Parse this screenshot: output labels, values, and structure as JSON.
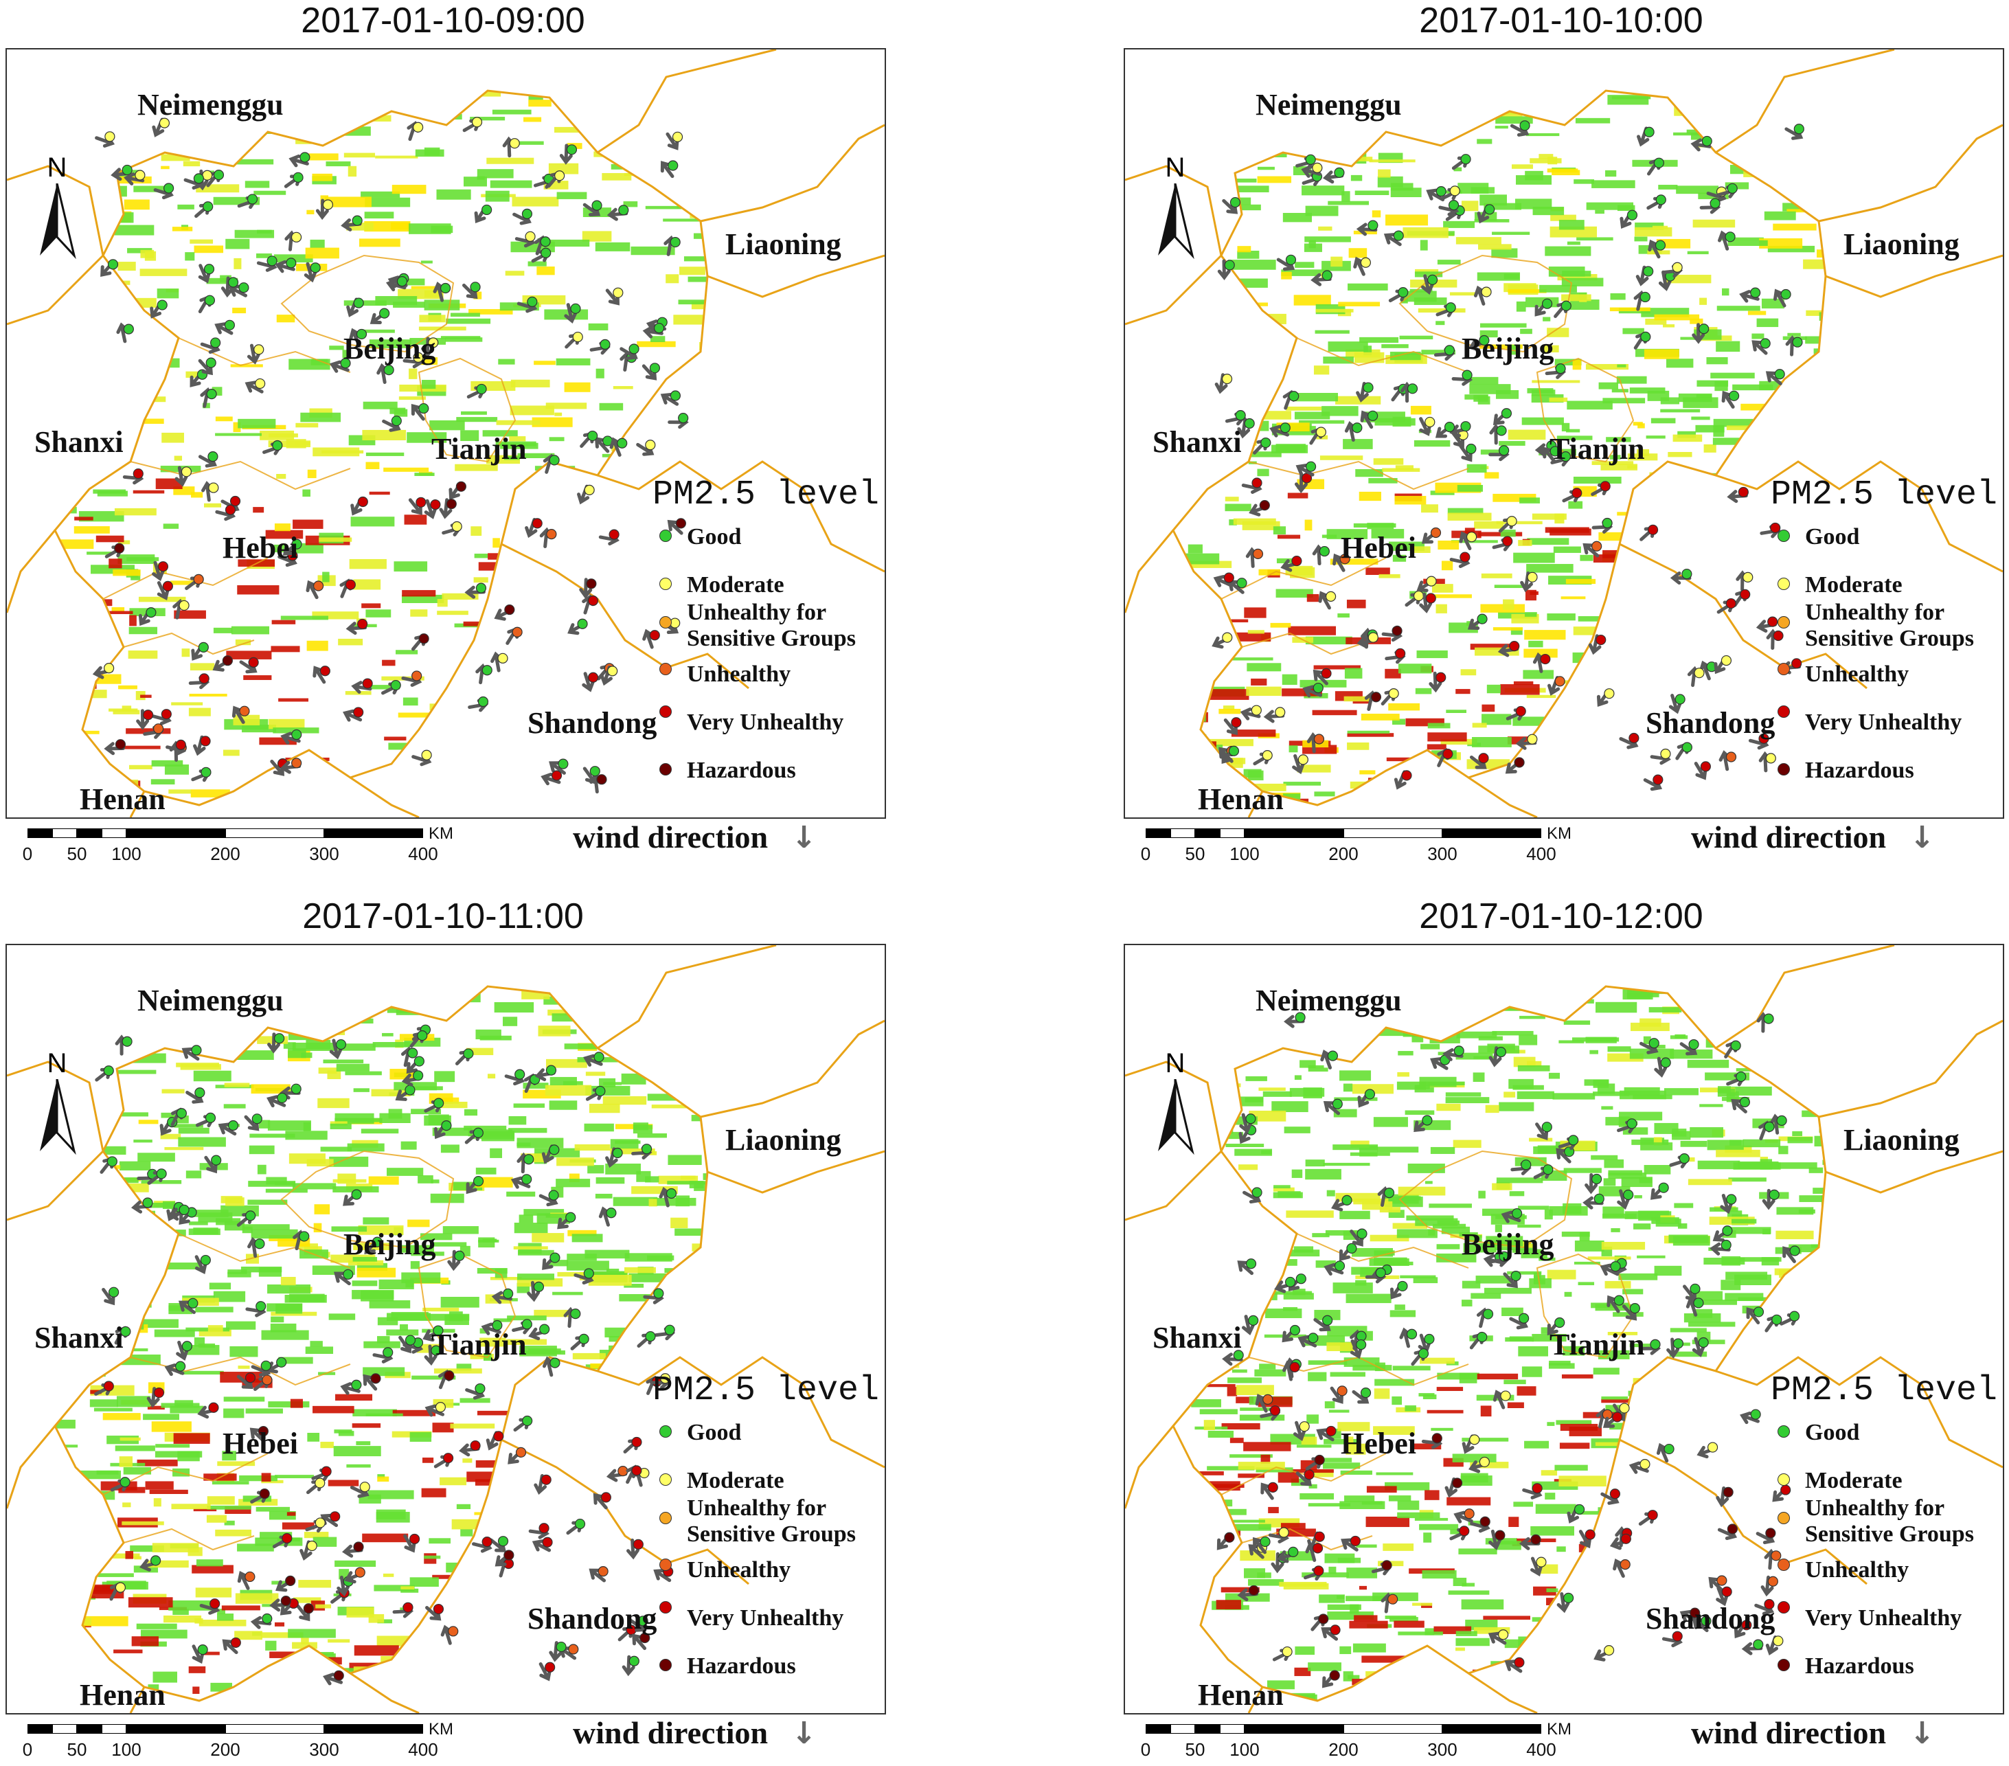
{
  "panels": [
    {
      "title": "2017-01-10-09:00"
    },
    {
      "title": "2017-01-10-10:00"
    },
    {
      "title": "2017-01-10-11:00"
    },
    {
      "title": "2017-01-10-12:00"
    }
  ],
  "regions": {
    "neimenggu": "Neimenggu",
    "liaoning": "Liaoning",
    "beijing": "Beijing",
    "shanxi": "Shanxi",
    "tianjin": "Tianjin",
    "hebei": "Hebei",
    "shandong": "Shandong",
    "henan": "Henan"
  },
  "north_label": "N",
  "legend": {
    "title": "PM2.5 level",
    "items": [
      {
        "label": "Good",
        "color": "#33cc33"
      },
      {
        "label": "Moderate",
        "color": "#ffff66"
      },
      {
        "label": "Unhealthy for Sensitive Groups",
        "color": "#f5a623"
      },
      {
        "label": "Unhealthy",
        "color": "#e8601c"
      },
      {
        "label": "Very Unhealthy",
        "color": "#cc0000"
      },
      {
        "label": "Hazardous",
        "color": "#6b0000"
      }
    ]
  },
  "scale_bar": {
    "ticks": [
      "0",
      "50",
      "100",
      "200",
      "300",
      "400"
    ],
    "unit": "KM"
  },
  "wind": {
    "label": "wind direction",
    "arrow_icon": "down-arrow-icon",
    "arrow_glyph": "↓"
  },
  "colors": {
    "boundary": "#e8a317",
    "good_fill": "#66e033",
    "moderate_fill": "#e6f02a",
    "yellow_fill": "#ffe600",
    "red_fill": "#cc1100",
    "arrow": "#5a5a5a"
  }
}
